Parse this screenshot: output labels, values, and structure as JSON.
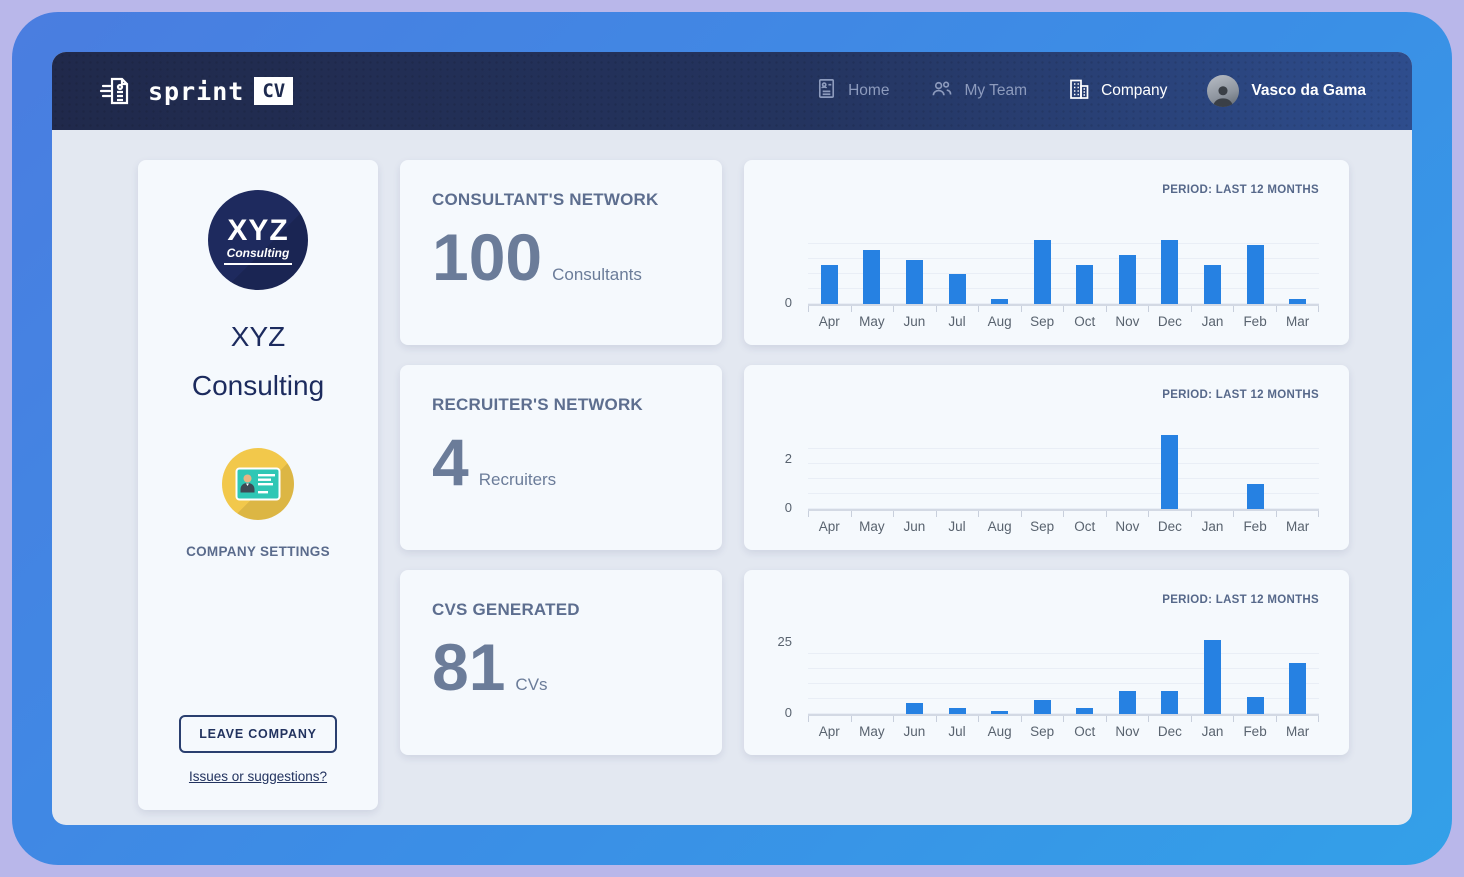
{
  "navbar": {
    "logo": {
      "text": "sprint",
      "badge": "CV"
    },
    "items": [
      {
        "label": "Home",
        "icon": "home-cv-icon",
        "active": false
      },
      {
        "label": "My Team",
        "icon": "team-icon",
        "active": false
      },
      {
        "label": "Company",
        "icon": "building-icon",
        "active": true
      }
    ],
    "user": {
      "name": "Vasco da Gama"
    }
  },
  "sidebar": {
    "logo": {
      "line1": "XYZ",
      "line2": "Consulting"
    },
    "company_name_line1": "XYZ",
    "company_name_line2": "Consulting",
    "settings_label": "COMPANY SETTINGS",
    "leave_button_label": "LEAVE COMPANY",
    "issues_link_label": "Issues or suggestions?"
  },
  "stats": [
    {
      "title": "CONSULTANT'S NETWORK",
      "value": "100",
      "unit": "Consultants"
    },
    {
      "title": "RECRUITER'S NETWORK",
      "value": "4",
      "unit": "Recruiters"
    },
    {
      "title": "CVS GENERATED",
      "value": "81",
      "unit": "CVs"
    }
  ],
  "chart_data": [
    {
      "type": "bar",
      "title": "Consultant's network — new consultants per month",
      "annotation": "PERIOD: LAST 12 MONTHS",
      "categories": [
        "Apr",
        "May",
        "Jun",
        "Jul",
        "Aug",
        "Sep",
        "Oct",
        "Nov",
        "Dec",
        "Jan",
        "Feb",
        "Mar"
      ],
      "values": [
        8,
        11,
        9,
        6,
        1,
        13,
        8,
        10,
        13,
        8,
        12,
        1
      ],
      "xlabel": "",
      "ylabel": "",
      "ylim": [
        0,
        15
      ],
      "yticks": [
        0
      ],
      "grid": true,
      "legend": false
    },
    {
      "type": "bar",
      "title": "Recruiter's network — new recruiters per month",
      "annotation": "PERIOD: LAST 12 MONTHS",
      "categories": [
        "Apr",
        "May",
        "Jun",
        "Jul",
        "Aug",
        "Sep",
        "Oct",
        "Nov",
        "Dec",
        "Jan",
        "Feb",
        "Mar"
      ],
      "values": [
        0,
        0,
        0,
        0,
        0,
        0,
        0,
        0,
        3,
        0,
        1,
        0
      ],
      "xlabel": "",
      "ylabel": "",
      "ylim": [
        0,
        3
      ],
      "yticks": [
        0,
        2
      ],
      "grid": true,
      "legend": false
    },
    {
      "type": "bar",
      "title": "CVs generated per month",
      "annotation": "PERIOD: LAST 12 MONTHS",
      "categories": [
        "Apr",
        "May",
        "Jun",
        "Jul",
        "Aug",
        "Sep",
        "Oct",
        "Nov",
        "Dec",
        "Jan",
        "Feb",
        "Mar"
      ],
      "values": [
        0,
        0,
        4,
        2,
        1,
        5,
        2,
        8,
        8,
        26,
        6,
        18
      ],
      "xlabel": "",
      "ylabel": "",
      "ylim": [
        0,
        26
      ],
      "yticks": [
        0,
        25
      ],
      "grid": true,
      "legend": false
    }
  ],
  "colors": {
    "bar_blue": "#2681e2",
    "navbar_left": "#20294b",
    "navbar_right": "#2e4d8d",
    "frame_blue": "#3b8ee6",
    "outer_background": "#b9b7ea",
    "card_background": "#f5f9fd",
    "navy_text": "#1e2a5e",
    "muted_title": "#5d6e8f",
    "stat_number": "#6b7c99",
    "settings_circle": "#f2c84b",
    "settings_card": "#2fc7b5"
  }
}
